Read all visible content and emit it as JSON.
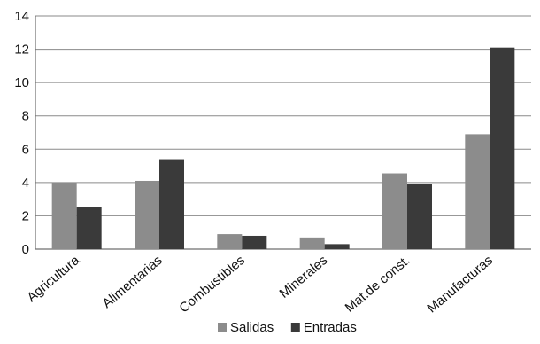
{
  "chart_data": {
    "type": "bar",
    "categories": [
      "Agricultura",
      "Alimentarias",
      "Combustibles",
      "Minerales",
      "Mat.de const.",
      "Manufacturas"
    ],
    "series": [
      {
        "name": "Salidas",
        "values": [
          4.0,
          4.1,
          0.9,
          0.7,
          4.55,
          6.9
        ],
        "color": "#8c8c8c"
      },
      {
        "name": "Entradas",
        "values": [
          2.55,
          5.4,
          0.8,
          0.3,
          3.9,
          12.1
        ],
        "color": "#3a3a3a"
      }
    ],
    "ylim": [
      0,
      14
    ],
    "yticks": [
      0,
      2,
      4,
      6,
      8,
      10,
      12,
      14
    ],
    "grid": true,
    "legend_position": "bottom-center",
    "title": "",
    "xlabel": "",
    "ylabel": ""
  }
}
